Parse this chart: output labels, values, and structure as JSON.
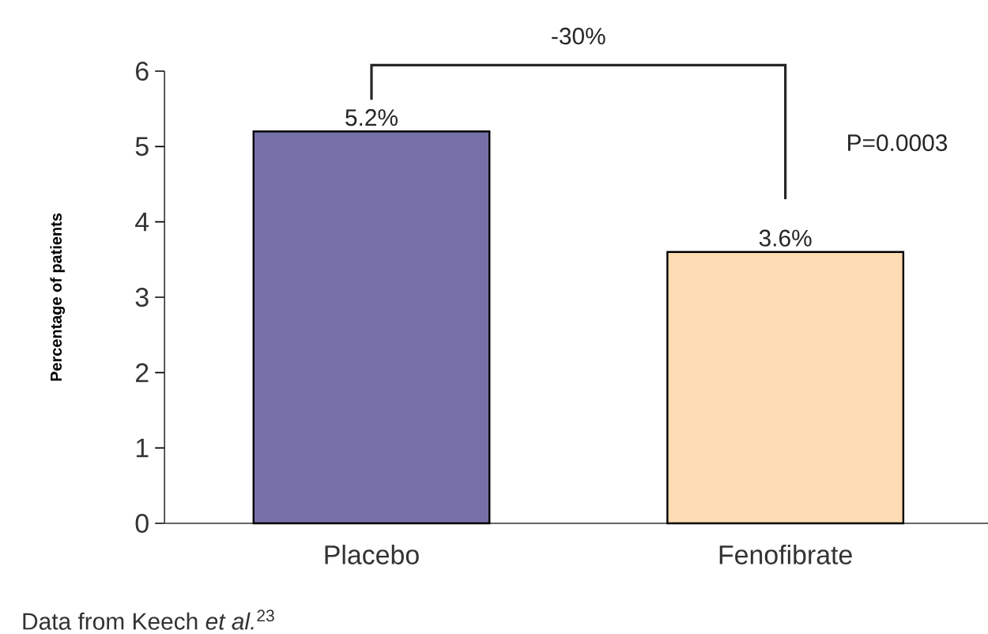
{
  "chart_data": {
    "type": "bar",
    "categories": [
      "Placebo",
      "Fenofibrate"
    ],
    "values": [
      5.2,
      3.6
    ],
    "colors": [
      "#7670a8",
      "#fddcb4"
    ],
    "value_labels": [
      "5.2%",
      "3.6%"
    ],
    "ylabel": "Percentage of patients",
    "ylim": [
      0,
      6
    ],
    "yticks": [
      0,
      1,
      2,
      3,
      4,
      5,
      6
    ],
    "grid": false,
    "annotations": [
      "-30%",
      "P=0.0003",
      "Data from Keech *et al.*$^{23}$"
    ]
  }
}
